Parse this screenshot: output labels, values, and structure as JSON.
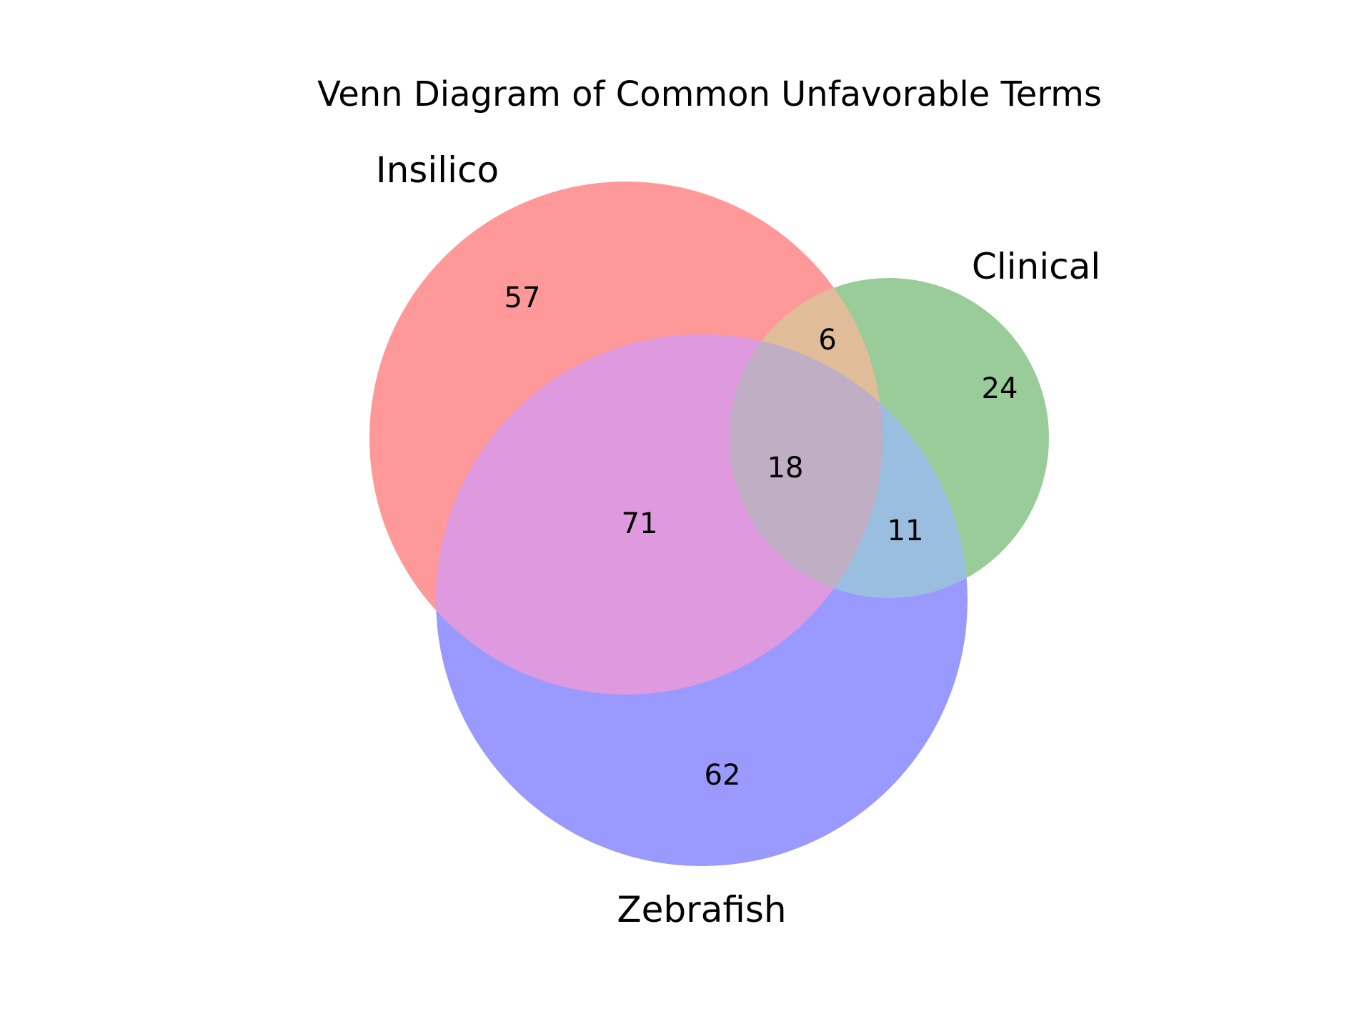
{
  "title": "Venn Diagram of Common Unfavorable Terms",
  "sets": [
    {
      "key": "A",
      "label": "Insilico",
      "color": "#ff9999"
    },
    {
      "key": "B",
      "label": "Clinical",
      "color": "#99cc99"
    },
    {
      "key": "C",
      "label": "Zebrafish",
      "color": "#9999ff"
    }
  ],
  "region_colors": {
    "A_only": "#ff9999",
    "B_only": "#99cc99",
    "C_only": "#9999ff",
    "AB": "#e0bc99",
    "AC": "#df99df",
    "BC": "#9abee0",
    "ABC": "#bfaec4"
  },
  "regions": {
    "A_only": "57",
    "B_only": "24",
    "C_only": "62",
    "AB": "6",
    "AC": "71",
    "BC": "11",
    "ABC": "18"
  }
}
